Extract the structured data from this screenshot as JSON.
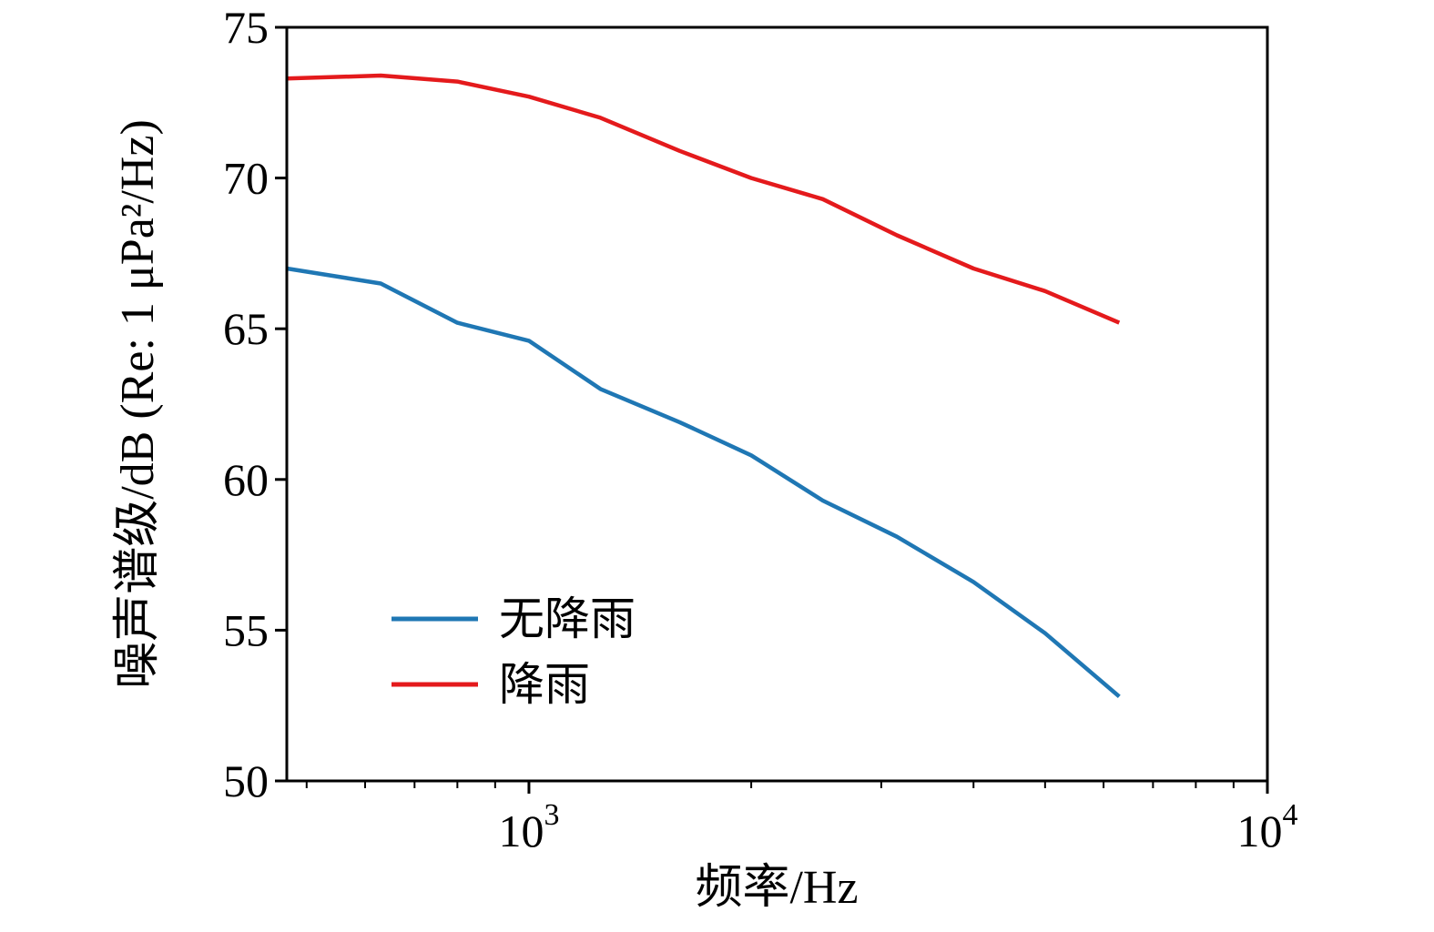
{
  "chart_data": {
    "type": "line",
    "title": "",
    "xlabel": "频率/Hz",
    "ylabel": "噪声谱级/dB (Re: 1 μPa²/Hz)",
    "x_scale": "log",
    "xlim": [
      470,
      10000
    ],
    "ylim": [
      50,
      75
    ],
    "grid": false,
    "y_major_ticks": [
      50,
      55,
      60,
      65,
      70,
      75
    ],
    "x_major_ticks": [
      {
        "value": 1000,
        "base": "10",
        "exp": "3"
      },
      {
        "value": 10000,
        "base": "10",
        "exp": "4"
      }
    ],
    "x_minor_ticks": [
      500,
      600,
      700,
      800,
      900,
      2000,
      3000,
      4000,
      5000,
      6000,
      7000,
      8000,
      9000
    ],
    "legend_position": "inside-lower-left",
    "series": [
      {
        "name": "无降雨",
        "color": "#1f77b4",
        "x": [
          470,
          630,
          800,
          1000,
          1250,
          1600,
          2000,
          2500,
          3150,
          4000,
          5000,
          6300
        ],
        "y": [
          67.0,
          66.5,
          65.2,
          64.6,
          63.0,
          61.9,
          60.8,
          59.3,
          58.1,
          56.6,
          54.9,
          52.8
        ]
      },
      {
        "name": "降雨",
        "color": "#e41a1c",
        "x": [
          470,
          630,
          800,
          1000,
          1250,
          1600,
          2000,
          2500,
          3150,
          4000,
          5000,
          6300
        ],
        "y": [
          73.3,
          73.4,
          73.2,
          72.7,
          72.0,
          70.9,
          70.0,
          69.3,
          68.1,
          67.0,
          66.25,
          65.2
        ]
      }
    ]
  }
}
